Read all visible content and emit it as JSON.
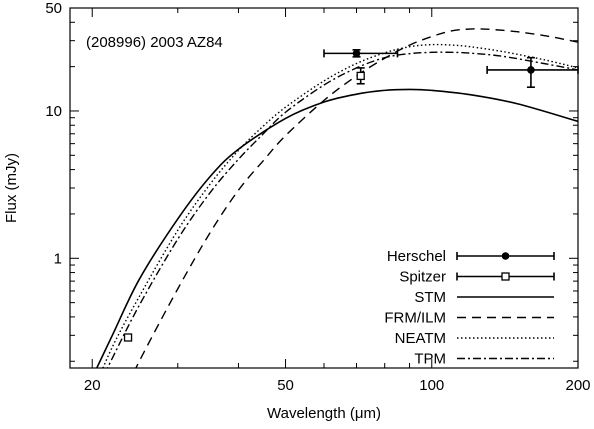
{
  "chart_data": {
    "type": "scatter",
    "annotation": "(208996) 2003 AZ84",
    "xlabel": "Wavelength (μm)",
    "ylabel": "Flux (mJy)",
    "xscale": "log",
    "yscale": "log",
    "xlim": [
      18,
      200
    ],
    "ylim": [
      0.18,
      50
    ],
    "x_ticks": [
      20,
      50,
      100,
      200
    ],
    "y_ticks": [
      1,
      10,
      50
    ],
    "grid": false,
    "legend_position": "bottom-right",
    "series": [
      {
        "name": "Herschel",
        "kind": "points",
        "marker": "filled-circle",
        "points": [
          {
            "x": 70,
            "y": 24.6,
            "xerr": [
              60,
              85
            ],
            "yerr": [
              23.3,
              26.0
            ]
          },
          {
            "x": 160,
            "y": 19.0,
            "xerr": [
              130,
              200
            ],
            "yerr": [
              14.5,
              23.0
            ]
          }
        ]
      },
      {
        "name": "Spitzer",
        "kind": "points",
        "marker": "open-square",
        "points": [
          {
            "x": 23.7,
            "y": 0.29,
            "yerr": [
              0.28,
              0.3
            ]
          },
          {
            "x": 71.4,
            "y": 17.3,
            "yerr": [
              15.3,
              19.6
            ]
          }
        ]
      },
      {
        "name": "STM",
        "kind": "line",
        "dash": "solid",
        "points": [
          [
            19.5,
            0.13
          ],
          [
            22,
            0.3
          ],
          [
            25,
            0.72
          ],
          [
            30,
            1.85
          ],
          [
            35,
            3.6
          ],
          [
            40,
            5.5
          ],
          [
            50,
            8.9
          ],
          [
            60,
            11.5
          ],
          [
            70,
            13.0
          ],
          [
            80,
            13.8
          ],
          [
            90,
            14.0
          ],
          [
            100,
            13.8
          ],
          [
            120,
            12.9
          ],
          [
            150,
            11.2
          ],
          [
            200,
            8.5
          ]
        ]
      },
      {
        "name": "FRM/ILM",
        "kind": "line",
        "dash": "dashed",
        "points": [
          [
            23,
            0.11
          ],
          [
            25,
            0.2
          ],
          [
            30,
            0.62
          ],
          [
            35,
            1.5
          ],
          [
            40,
            2.9
          ],
          [
            45,
            4.6
          ],
          [
            50,
            6.8
          ],
          [
            60,
            11.8
          ],
          [
            70,
            17.3
          ],
          [
            80,
            22.8
          ],
          [
            90,
            28.0
          ],
          [
            100,
            32.0
          ],
          [
            110,
            35.0
          ],
          [
            120,
            36.0
          ],
          [
            130,
            35.9
          ],
          [
            150,
            34.5
          ],
          [
            175,
            32.0
          ],
          [
            200,
            29.3
          ]
        ]
      },
      {
        "name": "NEATM",
        "kind": "line",
        "dash": "dotted",
        "points": [
          [
            20,
            0.12
          ],
          [
            22,
            0.25
          ],
          [
            25,
            0.55
          ],
          [
            30,
            1.55
          ],
          [
            35,
            3.2
          ],
          [
            40,
            5.4
          ],
          [
            45,
            7.9
          ],
          [
            50,
            10.6
          ],
          [
            60,
            16.0
          ],
          [
            70,
            21.0
          ],
          [
            80,
            24.8
          ],
          [
            90,
            27.3
          ],
          [
            100,
            28.2
          ],
          [
            110,
            28.0
          ],
          [
            120,
            27.3
          ],
          [
            140,
            25.3
          ],
          [
            170,
            22.3
          ],
          [
            200,
            19.6
          ]
        ]
      },
      {
        "name": "TPM",
        "kind": "line",
        "dash": "dash-dot",
        "points": [
          [
            20.5,
            0.13
          ],
          [
            22,
            0.21
          ],
          [
            25,
            0.48
          ],
          [
            30,
            1.35
          ],
          [
            35,
            2.8
          ],
          [
            40,
            4.7
          ],
          [
            45,
            7.0
          ],
          [
            50,
            9.8
          ],
          [
            60,
            15.0
          ],
          [
            70,
            19.6
          ],
          [
            80,
            23.0
          ],
          [
            90,
            24.5
          ],
          [
            100,
            25.0
          ],
          [
            110,
            25.0
          ],
          [
            120,
            24.7
          ],
          [
            140,
            23.5
          ],
          [
            170,
            21.0
          ],
          [
            200,
            19.0
          ]
        ]
      }
    ]
  }
}
